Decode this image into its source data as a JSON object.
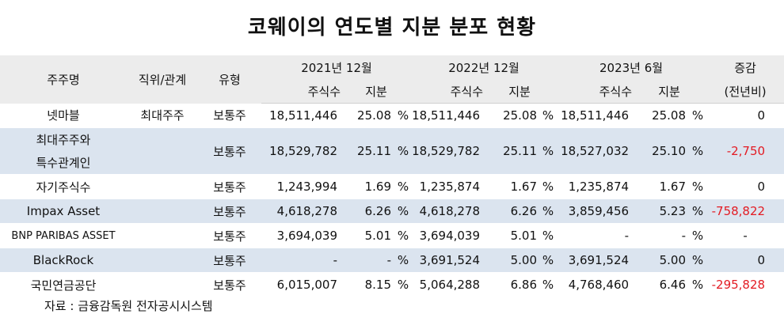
{
  "title": "코웨이의 연도별 지분 분포 현황",
  "header": {
    "shareholder": "주주명",
    "position": "직위/관계",
    "type": "유형",
    "period_2021": "2021년 12월",
    "period_2022": "2022년 12월",
    "period_2023": "2023년 6월",
    "change_line1": "증감",
    "change_line2": "(전년비)",
    "shares": "주식수",
    "stake": "지분"
  },
  "percent_sign": "%",
  "rows": [
    {
      "name": "넷마블",
      "position": "최대주주",
      "type": "보통주",
      "s2021": "18,511,446",
      "p2021": "25.08",
      "s2022": "18,511,446",
      "p2022": "25.08",
      "s2023": "18,511,446",
      "p2023": "25.08",
      "change": "0",
      "negative": false
    },
    {
      "name": "최대주주와",
      "name2": "특수관계인",
      "position": "",
      "type": "보통주",
      "s2021": "18,529,782",
      "p2021": "25.11",
      "s2022": "18,529,782",
      "p2022": "25.11",
      "s2023": "18,527,032",
      "p2023": "25.10",
      "change": "-2,750",
      "negative": true
    },
    {
      "name": "자기주식수",
      "position": "",
      "type": "보통주",
      "s2021": "1,243,994",
      "p2021": "1.69",
      "s2022": "1,235,874",
      "p2022": "1.67",
      "s2023": "1,235,874",
      "p2023": "1.67",
      "change": "0",
      "negative": false
    },
    {
      "name": "Impax Asset",
      "position": "",
      "type": "보통주",
      "s2021": "4,618,278",
      "p2021": "6.26",
      "s2022": "4,618,278",
      "p2022": "6.26",
      "s2023": "3,859,456",
      "p2023": "5.23",
      "change": "-758,822",
      "negative": true
    },
    {
      "name": "BNP PARIBAS ASSET",
      "position": "",
      "type": "보통주",
      "s2021": "3,694,039",
      "p2021": "5.01",
      "s2022": "3,694,039",
      "p2022": "5.01",
      "s2023": "-",
      "p2023": "-",
      "change": "-",
      "negative": false
    },
    {
      "name": "BlackRock",
      "position": "",
      "type": "보통주",
      "s2021": "-",
      "p2021": "-",
      "s2022": "3,691,524",
      "p2022": "5.00",
      "s2023": "3,691,524",
      "p2023": "5.00",
      "change": "0",
      "negative": false
    },
    {
      "name": "국민연금공단",
      "position": "",
      "type": "보통주",
      "s2021": "6,015,007",
      "p2021": "8.15",
      "s2022": "5,064,288",
      "p2022": "6.86",
      "s2023": "4,768,460",
      "p2023": "6.46",
      "change": "-295,828",
      "negative": true
    }
  ],
  "source": "자료 : 금융감독원 전자공시시스템"
}
